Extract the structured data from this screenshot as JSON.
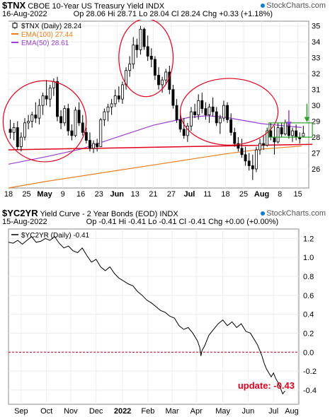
{
  "panel1": {
    "symbol": "$TNX",
    "name": "CBOE 10-Year US Treasury Yield",
    "exchange": "INDX",
    "date": "16-Aug-2022",
    "ohlc": "Op 28.06  Hi 28.71  Lo 28.04  Cl 28.24  Chg +0.33 (+1.18%)",
    "legend": [
      {
        "text": "$TNX (Daily) 28.24",
        "color": "#000000"
      },
      {
        "text": "EMA(100) 27.44",
        "color": "#f07d1c"
      },
      {
        "text": "EMA(50) 28.61",
        "color": "#9b3fd6"
      }
    ],
    "watermark": "StockCharts.com"
  },
  "panel2": {
    "symbol": "$YC2YR",
    "name": "Yield Curve - 2 Year Bonds (EOD)",
    "exchange": "INDX",
    "date": "15-Aug-2022",
    "ohlc": "Op -0.41  Hi -0.41  Lo -0.41  Cl -0.41  Chg +0.00 (+0.00%)",
    "legend": [
      {
        "text": "$YC2YR (Daily) -0.41",
        "color": "#000000"
      }
    ],
    "watermark": "StockCharts.com",
    "annotation": "update: -0.43",
    "annotation_color": "#e0001b"
  },
  "chart_data": [
    {
      "type": "candlestick",
      "title": "$TNX CBOE 10-Year US Treasury Yield",
      "ylim": [
        24.8,
        35.3
      ],
      "y_ticks": [
        26,
        27,
        28,
        29,
        30,
        31,
        32,
        33,
        34,
        35
      ],
      "x_ticks": [
        "18",
        "25",
        "May",
        "9",
        "16",
        "23",
        "Jun6",
        "13",
        "21",
        "27",
        "Jul",
        "11",
        "18",
        "25",
        "Aug",
        "8",
        "15"
      ],
      "grid": true,
      "x_index_range": [
        0,
        83
      ],
      "x_tick_index": [
        0,
        5,
        10,
        15,
        20,
        25,
        30,
        35,
        40,
        45,
        50,
        55,
        60,
        65,
        70,
        75,
        80
      ],
      "candles": [
        [
          28.5,
          29.1,
          27.9,
          28.3
        ],
        [
          28.3,
          28.9,
          27.8,
          28.6
        ],
        [
          28.6,
          29.0,
          27.2,
          27.4
        ],
        [
          27.4,
          28.3,
          27.1,
          28.0
        ],
        [
          28.0,
          29.2,
          27.8,
          28.9
        ],
        [
          28.9,
          29.4,
          28.5,
          29.0
        ],
        [
          29.0,
          29.6,
          28.6,
          29.4
        ],
        [
          29.4,
          30.2,
          28.9,
          29.2
        ],
        [
          29.2,
          30.4,
          28.8,
          30.0
        ],
        [
          30.0,
          30.8,
          29.4,
          30.6
        ],
        [
          30.6,
          31.6,
          30.0,
          30.4
        ],
        [
          30.4,
          31.3,
          29.9,
          31.1
        ],
        [
          31.1,
          31.7,
          30.6,
          31.5
        ],
        [
          31.5,
          31.8,
          29.0,
          29.3
        ],
        [
          29.3,
          29.7,
          28.5,
          28.9
        ],
        [
          28.9,
          30.0,
          28.7,
          29.8
        ],
        [
          29.8,
          30.1,
          28.1,
          28.4
        ],
        [
          28.4,
          28.8,
          27.8,
          28.1
        ],
        [
          28.1,
          29.9,
          28.0,
          29.7
        ],
        [
          29.7,
          30.2,
          28.7,
          28.9
        ],
        [
          28.9,
          29.4,
          28.1,
          28.3
        ],
        [
          28.3,
          28.6,
          27.6,
          27.8
        ],
        [
          27.8,
          28.3,
          27.1,
          27.3
        ],
        [
          27.3,
          27.8,
          27.0,
          27.6
        ],
        [
          27.6,
          27.9,
          27.1,
          27.4
        ],
        [
          27.4,
          29.2,
          27.4,
          29.1
        ],
        [
          29.1,
          29.8,
          28.7,
          29.6
        ],
        [
          29.6,
          30.1,
          29.0,
          29.9
        ],
        [
          29.9,
          30.4,
          29.4,
          30.1
        ],
        [
          30.1,
          31.0,
          29.9,
          30.6
        ],
        [
          30.6,
          31.2,
          30.2,
          30.4
        ],
        [
          30.4,
          31.5,
          30.1,
          31.3
        ],
        [
          31.3,
          32.4,
          31.0,
          32.2
        ],
        [
          32.2,
          33.1,
          31.8,
          32.6
        ],
        [
          32.6,
          34.3,
          32.3,
          33.8
        ],
        [
          33.8,
          34.2,
          33.0,
          33.5
        ],
        [
          33.5,
          35.0,
          33.2,
          34.8
        ],
        [
          34.8,
          34.9,
          33.5,
          33.7
        ],
        [
          33.7,
          34.4,
          32.8,
          33.1
        ],
        [
          33.1,
          33.6,
          32.4,
          32.9
        ],
        [
          32.9,
          33.1,
          31.6,
          31.9
        ],
        [
          31.9,
          32.4,
          31.0,
          31.3
        ],
        [
          31.3,
          31.8,
          30.8,
          31.6
        ],
        [
          31.6,
          32.3,
          31.3,
          32.1
        ],
        [
          32.1,
          32.5,
          30.7,
          31.0
        ],
        [
          31.0,
          31.3,
          29.8,
          30.0
        ],
        [
          30.0,
          30.4,
          28.9,
          29.1
        ],
        [
          29.1,
          29.5,
          28.3,
          28.5
        ],
        [
          28.5,
          29.2,
          27.9,
          28.1
        ],
        [
          28.1,
          28.9,
          27.7,
          28.7
        ],
        [
          28.7,
          29.9,
          28.4,
          29.6
        ],
        [
          29.6,
          30.1,
          29.2,
          29.4
        ],
        [
          29.4,
          30.7,
          29.1,
          30.3
        ],
        [
          30.3,
          30.8,
          29.5,
          29.8
        ],
        [
          29.8,
          30.2,
          29.1,
          29.4
        ],
        [
          29.4,
          30.1,
          28.9,
          29.9
        ],
        [
          29.9,
          30.5,
          29.3,
          29.6
        ],
        [
          29.6,
          29.9,
          28.7,
          28.9
        ],
        [
          28.9,
          29.4,
          28.2,
          29.2
        ],
        [
          29.2,
          30.3,
          29.0,
          30.0
        ],
        [
          30.0,
          30.2,
          28.9,
          29.1
        ],
        [
          29.1,
          29.5,
          28.1,
          28.3
        ],
        [
          28.3,
          28.6,
          27.4,
          27.6
        ],
        [
          27.6,
          28.0,
          27.1,
          27.3
        ],
        [
          27.3,
          27.9,
          26.7,
          26.9
        ],
        [
          26.9,
          27.4,
          26.2,
          26.5
        ],
        [
          26.5,
          27.0,
          25.9,
          26.2
        ],
        [
          26.2,
          26.9,
          25.3,
          26.0
        ],
        [
          26.0,
          27.4,
          25.8,
          27.2
        ],
        [
          27.2,
          27.9,
          26.9,
          27.6
        ],
        [
          27.6,
          28.1,
          27.2,
          27.5
        ],
        [
          27.5,
          28.6,
          27.4,
          28.4
        ],
        [
          28.4,
          28.9,
          27.8,
          28.0
        ],
        [
          28.0,
          28.7,
          26.9,
          27.7
        ],
        [
          27.7,
          28.9,
          27.6,
          28.6
        ],
        [
          28.6,
          28.9,
          28.0,
          28.2
        ],
        [
          28.2,
          29.1,
          28.1,
          28.9
        ],
        [
          28.9,
          29.0,
          27.9,
          28.1
        ],
        [
          28.1,
          28.6,
          27.7,
          28.4
        ],
        [
          28.4,
          28.8,
          27.8,
          28.0
        ],
        [
          28.0,
          28.3,
          27.6,
          27.9
        ],
        [
          28.06,
          28.71,
          28.04,
          28.24
        ]
      ],
      "ema100": [
        [
          0,
          24.8
        ],
        [
          10,
          25.2
        ],
        [
          20,
          25.55
        ],
        [
          30,
          25.9
        ],
        [
          40,
          26.25
        ],
        [
          50,
          26.6
        ],
        [
          60,
          26.95
        ],
        [
          70,
          27.25
        ],
        [
          81,
          27.44
        ]
      ],
      "ema50": [
        [
          0,
          26.3
        ],
        [
          10,
          26.75
        ],
        [
          20,
          27.25
        ],
        [
          30,
          28.0
        ],
        [
          40,
          28.75
        ],
        [
          50,
          29.25
        ],
        [
          55,
          29.35
        ],
        [
          60,
          29.25
        ],
        [
          70,
          28.85
        ],
        [
          81,
          28.61
        ]
      ],
      "red_trendline": [
        [
          0,
          27.2
        ],
        [
          84,
          27.55
        ]
      ],
      "circles": [
        {
          "x_center": 10,
          "y_center": 29.0,
          "rx_bars": 11.5,
          "ry_units": 2.55
        },
        {
          "x_center": 38,
          "y_center": 33.0,
          "rx_bars": 7.5,
          "ry_units": 2.45
        },
        {
          "x_center": 61,
          "y_center": 29.6,
          "rx_bars": 13.5,
          "ry_units": 2.1
        }
      ],
      "green_box": {
        "x0": 72,
        "x1": 84,
        "y0": 28.0,
        "y1": 28.9
      },
      "arrows": [
        {
          "x": 77.5,
          "y_from": 29.7,
          "y_to": 28.7,
          "color": "#9b3fd6"
        },
        {
          "x": 82.5,
          "y_from": 30.1,
          "y_to": 29.0,
          "color": "#2ca02c"
        }
      ]
    },
    {
      "type": "line",
      "title": "$YC2YR Yield Curve - 2 Year Bonds (EOD)",
      "ylim": [
        -0.55,
        1.3
      ],
      "y_ticks": [
        -0.4,
        -0.2,
        0.0,
        0.2,
        0.4,
        0.6,
        0.8,
        1.0,
        1.2
      ],
      "x_ticks": [
        "Sep",
        "Oct",
        "Nov",
        "Dec",
        "2022",
        "Feb",
        "Mar",
        "Apr",
        "May",
        "Jun",
        "Jul",
        "Aug"
      ],
      "x_index_range": [
        0,
        240
      ],
      "x_tick_index": [
        11,
        33,
        54,
        76,
        99,
        121,
        142,
        163,
        186,
        208,
        230,
        251
      ],
      "zero_line": 0.0,
      "grid": true,
      "series": [
        {
          "values": [
            [
              0,
              1.16
            ],
            [
              4,
              1.15
            ],
            [
              8,
              1.18
            ],
            [
              12,
              1.14
            ],
            [
              16,
              1.18
            ],
            [
              20,
              1.22
            ],
            [
              24,
              1.16
            ],
            [
              28,
              1.17
            ],
            [
              32,
              1.2
            ],
            [
              36,
              1.18
            ],
            [
              40,
              1.22
            ],
            [
              44,
              1.15
            ],
            [
              48,
              1.1
            ],
            [
              52,
              1.12
            ],
            [
              56,
              1.07
            ],
            [
              60,
              1.05
            ],
            [
              64,
              1.1
            ],
            [
              68,
              1.02
            ],
            [
              72,
              0.95
            ],
            [
              76,
              0.98
            ],
            [
              80,
              0.9
            ],
            [
              84,
              0.86
            ],
            [
              88,
              0.9
            ],
            [
              92,
              0.83
            ],
            [
              96,
              0.78
            ],
            [
              100,
              0.75
            ],
            [
              104,
              0.72
            ],
            [
              108,
              0.7
            ],
            [
              112,
              0.64
            ],
            [
              116,
              0.6
            ],
            [
              120,
              0.55
            ],
            [
              124,
              0.52
            ],
            [
              128,
              0.48
            ],
            [
              132,
              0.44
            ],
            [
              136,
              0.42
            ],
            [
              140,
              0.38
            ],
            [
              144,
              0.36
            ],
            [
              148,
              0.28
            ],
            [
              152,
              0.24
            ],
            [
              156,
              0.26
            ],
            [
              160,
              0.2
            ],
            [
              164,
              0.12
            ],
            [
              166,
              0.05
            ],
            [
              167,
              -0.04
            ],
            [
              168,
              0.02
            ],
            [
              170,
              0.06
            ],
            [
              174,
              0.18
            ],
            [
              178,
              0.24
            ],
            [
              182,
              0.3
            ],
            [
              186,
              0.34
            ],
            [
              190,
              0.28
            ],
            [
              194,
              0.32
            ],
            [
              198,
              0.26
            ],
            [
              202,
              0.3
            ],
            [
              206,
              0.22
            ],
            [
              210,
              0.2
            ],
            [
              212,
              0.16
            ],
            [
              214,
              0.12
            ],
            [
              216,
              0.08
            ],
            [
              218,
              0.02
            ],
            [
              220,
              -0.04
            ],
            [
              222,
              -0.12
            ],
            [
              224,
              -0.18
            ],
            [
              226,
              -0.22
            ],
            [
              228,
              -0.26
            ],
            [
              230,
              -0.22
            ],
            [
              232,
              -0.28
            ],
            [
              234,
              -0.32
            ],
            [
              236,
              -0.38
            ],
            [
              238,
              -0.44
            ],
            [
              240,
              -0.41
            ]
          ]
        }
      ]
    }
  ]
}
